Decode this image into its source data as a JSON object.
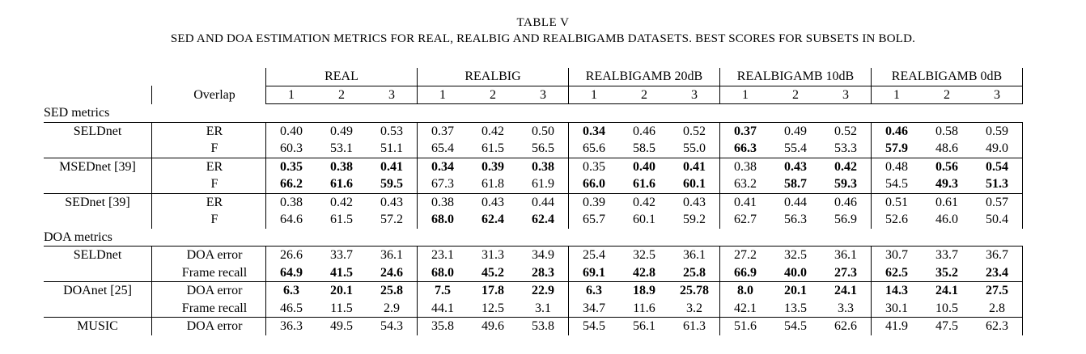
{
  "caption": {
    "number": "TABLE V",
    "text": "SED AND DOA ESTIMATION METRICS FOR REAL, REALBIG AND REALBIGAMB DATASETS. BEST SCORES FOR SUBSETS IN BOLD."
  },
  "header": {
    "groups": [
      "REAL",
      "REALBIG",
      "REALBIGAMB 20dB",
      "REALBIGAMB 10dB",
      "REALBIGAMB 0dB"
    ],
    "overlap_label": "Overlap",
    "subcols": [
      "1",
      "2",
      "3"
    ]
  },
  "sections": [
    {
      "title": "SED metrics",
      "models": [
        {
          "name": "SELDnet",
          "rows": [
            {
              "metric": "ER",
              "values": [
                "0.40",
                "0.49",
                "0.53",
                "0.37",
                "0.42",
                "0.50",
                "0.34",
                "0.46",
                "0.52",
                "0.37",
                "0.49",
                "0.52",
                "0.46",
                "0.58",
                "0.59"
              ],
              "bold": [
                6,
                9,
                12
              ]
            },
            {
              "metric": "F",
              "values": [
                "60.3",
                "53.1",
                "51.1",
                "65.4",
                "61.5",
                "56.5",
                "65.6",
                "58.5",
                "55.0",
                "66.3",
                "55.4",
                "53.3",
                "57.9",
                "48.6",
                "49.0"
              ],
              "bold": [
                9,
                12
              ]
            }
          ]
        },
        {
          "name": "MSEDnet [39]",
          "rows": [
            {
              "metric": "ER",
              "values": [
                "0.35",
                "0.38",
                "0.41",
                "0.34",
                "0.39",
                "0.38",
                "0.35",
                "0.40",
                "0.41",
                "0.38",
                "0.43",
                "0.42",
                "0.48",
                "0.56",
                "0.54"
              ],
              "bold": [
                0,
                1,
                2,
                3,
                4,
                5,
                7,
                8,
                10,
                11,
                13,
                14
              ]
            },
            {
              "metric": "F",
              "values": [
                "66.2",
                "61.6",
                "59.5",
                "67.3",
                "61.8",
                "61.9",
                "66.0",
                "61.6",
                "60.1",
                "63.2",
                "58.7",
                "59.3",
                "54.5",
                "49.3",
                "51.3"
              ],
              "bold": [
                0,
                1,
                2,
                6,
                7,
                8,
                10,
                11,
                13,
                14
              ]
            }
          ]
        },
        {
          "name": "SEDnet [39]",
          "rows": [
            {
              "metric": "ER",
              "values": [
                "0.38",
                "0.42",
                "0.43",
                "0.38",
                "0.43",
                "0.44",
                "0.39",
                "0.42",
                "0.43",
                "0.41",
                "0.44",
                "0.46",
                "0.51",
                "0.61",
                "0.57"
              ],
              "bold": []
            },
            {
              "metric": "F",
              "values": [
                "64.6",
                "61.5",
                "57.2",
                "68.0",
                "62.4",
                "62.4",
                "65.7",
                "60.1",
                "59.2",
                "62.7",
                "56.3",
                "56.9",
                "52.6",
                "46.0",
                "50.4"
              ],
              "bold": [
                3,
                4,
                5
              ]
            }
          ]
        }
      ]
    },
    {
      "title": "DOA metrics",
      "models": [
        {
          "name": "SELDnet",
          "rows": [
            {
              "metric": "DOA error",
              "values": [
                "26.6",
                "33.7",
                "36.1",
                "23.1",
                "31.3",
                "34.9",
                "25.4",
                "32.5",
                "36.1",
                "27.2",
                "32.5",
                "36.1",
                "30.7",
                "33.7",
                "36.7"
              ],
              "bold": []
            },
            {
              "metric": "Frame recall",
              "values": [
                "64.9",
                "41.5",
                "24.6",
                "68.0",
                "45.2",
                "28.3",
                "69.1",
                "42.8",
                "25.8",
                "66.9",
                "40.0",
                "27.3",
                "62.5",
                "35.2",
                "23.4"
              ],
              "bold": [
                0,
                1,
                2,
                3,
                4,
                5,
                6,
                7,
                8,
                9,
                10,
                11,
                12,
                13,
                14
              ]
            }
          ]
        },
        {
          "name": "DOAnet [25]",
          "rows": [
            {
              "metric": "DOA error",
              "values": [
                "6.3",
                "20.1",
                "25.8",
                "7.5",
                "17.8",
                "22.9",
                "6.3",
                "18.9",
                "25.78",
                "8.0",
                "20.1",
                "24.1",
                "14.3",
                "24.1",
                "27.5"
              ],
              "bold": [
                0,
                1,
                2,
                3,
                4,
                5,
                6,
                7,
                8,
                9,
                10,
                11,
                12,
                13,
                14
              ]
            },
            {
              "metric": "Frame recall",
              "values": [
                "46.5",
                "11.5",
                "2.9",
                "44.1",
                "12.5",
                "3.1",
                "34.7",
                "11.6",
                "3.2",
                "42.1",
                "13.5",
                "3.3",
                "30.1",
                "10.5",
                "2.8"
              ],
              "bold": []
            }
          ]
        },
        {
          "name": "MUSIC",
          "rows": [
            {
              "metric": "DOA error",
              "values": [
                "36.3",
                "49.5",
                "54.3",
                "35.8",
                "49.6",
                "53.8",
                "54.5",
                "56.1",
                "61.3",
                "51.6",
                "54.5",
                "62.6",
                "41.9",
                "47.5",
                "62.3"
              ],
              "bold": []
            }
          ]
        }
      ]
    }
  ]
}
